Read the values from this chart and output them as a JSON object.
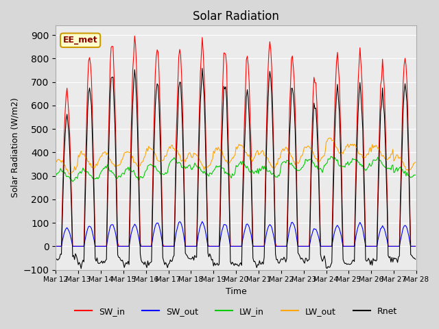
{
  "title": "Solar Radiation",
  "ylabel": "Solar Radiation (W/m2)",
  "xlabel": "Time",
  "annotation": "EE_met",
  "ylim": [
    -100,
    940
  ],
  "yticks": [
    -100,
    0,
    100,
    200,
    300,
    400,
    500,
    600,
    700,
    800,
    900
  ],
  "n_days": 16,
  "start_day": 12,
  "colors": {
    "SW_in": "#ff0000",
    "SW_out": "#0000ff",
    "LW_in": "#00cc00",
    "LW_out": "#ffa500",
    "Rnet": "#000000"
  },
  "legend_labels": [
    "SW_in",
    "SW_out",
    "LW_in",
    "LW_out",
    "Rnet"
  ],
  "background_color": "#d8d8d8",
  "plot_bg_color": "#ebebeb",
  "grid_color": "#ffffff",
  "annotation_bg": "#ffffcc",
  "annotation_border": "#cc9900"
}
